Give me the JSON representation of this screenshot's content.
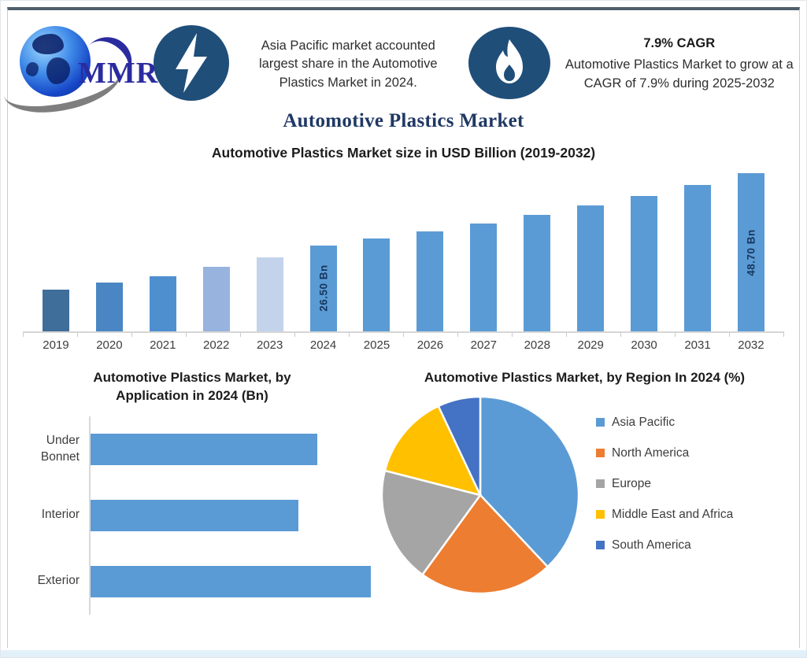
{
  "brand": {
    "logo_text": "MMR"
  },
  "header": {
    "highlight_share": "Asia Pacific market accounted largest share in the Automotive Plastics Market in 2024.",
    "cagr_title": "7.9% CAGR",
    "cagr_text": "Automotive Plastics Market to grow at a CAGR of 7.9% during 2025-2032"
  },
  "page_title": "Automotive Plastics Market",
  "colors": {
    "accent_blue": "#5B9BD5",
    "icon_circle_blue": "#1F4E79",
    "title_navy": "#1F3864",
    "bar_label_navy": "#17375E",
    "axis_gray": "#D9D9D9"
  },
  "chart_data": [
    {
      "type": "bar",
      "orientation": "vertical",
      "title": "Automotive Plastics Market size in USD Billion (2019-2032)",
      "categories": [
        "2019",
        "2020",
        "2021",
        "2022",
        "2023",
        "2024",
        "2025",
        "2026",
        "2027",
        "2028",
        "2029",
        "2030",
        "2031",
        "2032"
      ],
      "values": [
        12.9,
        15.0,
        17.1,
        19.9,
        22.8,
        26.5,
        28.6,
        30.9,
        33.3,
        35.9,
        38.8,
        41.8,
        45.1,
        48.7
      ],
      "values_note": "only 2024 and 2032 carry printed labels; other values estimated from bar heights",
      "data_labels": {
        "2024": "26.50 Bn",
        "2032": "48.70 Bn"
      },
      "bar_colors": [
        "#3F6E9A",
        "#4A86C3",
        "#4E8FD0",
        "#97B3DE",
        "#C3D3EB",
        "#5B9BD5",
        "#5B9BD5",
        "#5B9BD5",
        "#5B9BD5",
        "#5B9BD5",
        "#5B9BD5",
        "#5B9BD5",
        "#5B9BD5",
        "#5B9BD5"
      ],
      "xlabel": "",
      "ylabel": "",
      "ylim": [
        0,
        50
      ],
      "grid": false,
      "legend": false
    },
    {
      "type": "bar",
      "orientation": "horizontal",
      "title": "Automotive Plastics Market, by Application in 2024 (Bn)",
      "categories": [
        "Under Bonnet",
        "Interior",
        "Exterior"
      ],
      "values": [
        8.4,
        7.7,
        10.4
      ],
      "values_note": "no numeric labels printed; values estimated from bar lengths",
      "bar_color": "#5B9BD5",
      "xlim": [
        0,
        10.4
      ],
      "grid": false,
      "legend": false
    },
    {
      "type": "pie",
      "title": "Automotive Plastics Market, by Region In 2024 (%)",
      "labels": [
        "Asia Pacific",
        "North America",
        "Europe",
        "Middle East and Africa",
        "South America"
      ],
      "values": [
        38,
        22,
        19,
        14,
        7
      ],
      "values_note": "no numeric labels printed; percentages estimated from slice angles",
      "colors": [
        "#5B9BD5",
        "#ED7D31",
        "#A5A5A5",
        "#FFC000",
        "#4472C4"
      ],
      "start_angle_deg": 0,
      "direction": "clockwise",
      "legend_position": "right"
    }
  ]
}
